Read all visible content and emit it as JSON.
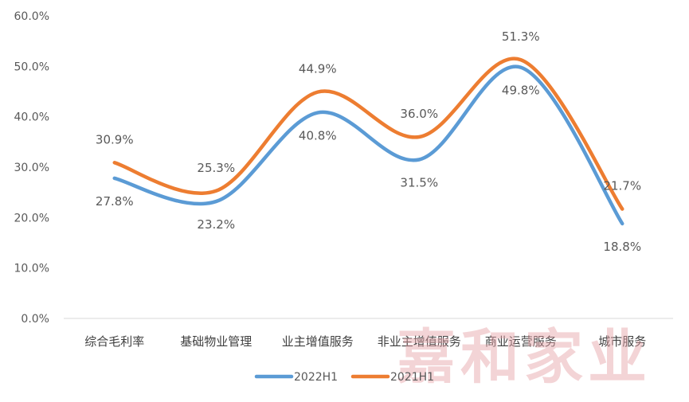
{
  "chart_data": {
    "type": "line",
    "categories": [
      "综合毛利率",
      "基础物业管理",
      "业主增值服务",
      "非业主增值服务",
      "商业运营服务",
      "城市服务"
    ],
    "series": [
      {
        "name": "2022H1",
        "values": [
          27.8,
          23.2,
          40.8,
          31.5,
          49.8,
          18.8
        ],
        "color": "#5b9bd5",
        "labels": [
          "27.8%",
          "23.2%",
          "40.8%",
          "31.5%",
          "49.8%",
          "18.8%"
        ]
      },
      {
        "name": "2021H1",
        "values": [
          30.9,
          25.3,
          44.9,
          36.0,
          51.3,
          21.7
        ],
        "color": "#ed7d31",
        "labels": [
          "30.9%",
          "25.3%",
          "44.9%",
          "36.0%",
          "51.3%",
          "21.7%"
        ]
      }
    ],
    "yticks": [
      {
        "value": 0,
        "label": "0.0%"
      },
      {
        "value": 10,
        "label": "10.0%"
      },
      {
        "value": 20,
        "label": "20.0%"
      },
      {
        "value": 30,
        "label": "30.0%"
      },
      {
        "value": 40,
        "label": "40.0%"
      },
      {
        "value": 50,
        "label": "50.0%"
      },
      {
        "value": 60,
        "label": "60.0%"
      }
    ],
    "ylim": [
      0,
      60
    ],
    "smooth": true,
    "grid": false,
    "legend_position": "bottom"
  },
  "watermark": "嘉和家业"
}
